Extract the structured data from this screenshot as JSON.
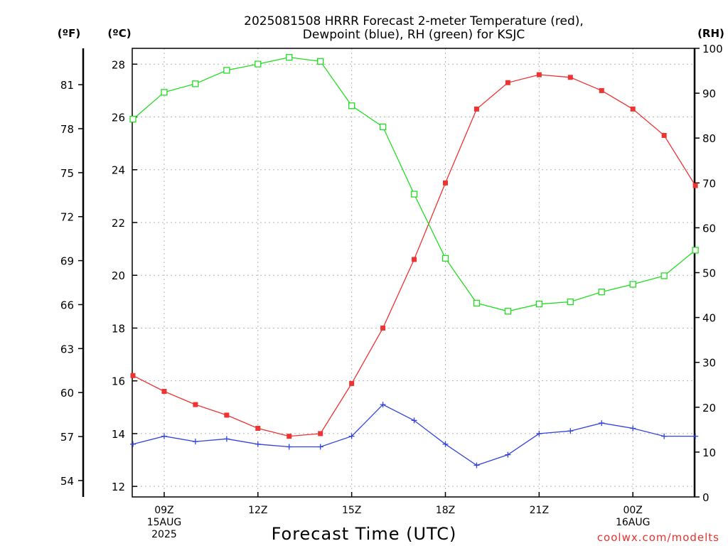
{
  "chart_data": {
    "type": "line",
    "title_lines": [
      "2025081508 HRRR Forecast 2-meter Temperature (red),",
      "Dewpoint (blue), RH (green) for KSJC"
    ],
    "xlabel": "Forecast Time (UTC)",
    "units": {
      "left_outer": "(ºF)",
      "left_inner": "(ºC)",
      "right": "(RH)"
    },
    "x": [
      "08Z",
      "09Z",
      "10Z",
      "11Z",
      "12Z",
      "13Z",
      "14Z",
      "15Z",
      "16Z",
      "17Z",
      "18Z",
      "19Z",
      "20Z",
      "21Z",
      "22Z",
      "23Z",
      "00Z",
      "01Z",
      "02Z"
    ],
    "x_tick_labels": [
      {
        "index": 1,
        "lines": [
          "09Z",
          "15AUG",
          "2025"
        ]
      },
      {
        "index": 4,
        "lines": [
          "12Z"
        ]
      },
      {
        "index": 7,
        "lines": [
          "15Z"
        ]
      },
      {
        "index": 10,
        "lines": [
          "18Z"
        ]
      },
      {
        "index": 13,
        "lines": [
          "21Z"
        ]
      },
      {
        "index": 16,
        "lines": [
          "00Z",
          "16AUG"
        ]
      }
    ],
    "axes": {
      "celsius": {
        "ylim": [
          11.6,
          28.6
        ],
        "ticks": [
          12,
          14,
          16,
          18,
          20,
          22,
          24,
          26,
          28
        ]
      },
      "fahrenheit": {
        "ticks": [
          54,
          57,
          60,
          63,
          66,
          69,
          72,
          75,
          78,
          81
        ]
      },
      "rh": {
        "ylim": [
          0,
          100
        ],
        "ticks": [
          0,
          10,
          20,
          30,
          40,
          50,
          60,
          70,
          80,
          90,
          100
        ]
      }
    },
    "grid": true,
    "series": [
      {
        "name": "Temperature",
        "unit": "°C",
        "color": "#ee3333",
        "marker": "filled-square",
        "values": [
          16.2,
          15.6,
          15.1,
          14.7,
          14.2,
          13.9,
          14.0,
          15.9,
          18.0,
          20.6,
          23.5,
          26.3,
          27.3,
          27.6,
          27.5,
          27.0,
          26.3,
          25.3,
          23.4
        ]
      },
      {
        "name": "Dewpoint",
        "unit": "°C",
        "color": "#3344dd",
        "marker": "plus",
        "values": [
          13.6,
          13.9,
          13.7,
          13.8,
          13.6,
          13.5,
          13.5,
          13.9,
          15.1,
          14.5,
          13.6,
          12.8,
          13.2,
          14.0,
          14.1,
          14.4,
          14.2,
          13.9,
          13.9
        ]
      },
      {
        "name": "RH",
        "unit": "%",
        "color": "#22dd22",
        "marker": "open-square",
        "values": [
          84.2,
          90.2,
          92.1,
          95.1,
          96.5,
          98.0,
          97.1,
          87.2,
          82.5,
          67.5,
          53.2,
          43.2,
          41.4,
          43.0,
          43.5,
          45.7,
          47.4,
          49.3,
          55.0
        ]
      }
    ]
  },
  "credit": "coolwx.com/modelts"
}
